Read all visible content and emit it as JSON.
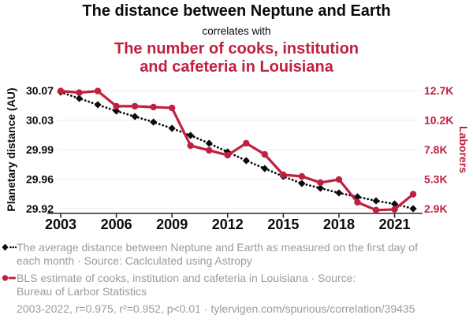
{
  "header": {
    "title": "The distance between Neptune and Earth",
    "connector": "correlates with",
    "subtitle": "The number of cooks, institution and cafeteria in Louisiana",
    "subtitle_lines": [
      "The number of cooks, institution",
      "and cafeteria in Louisiana"
    ]
  },
  "chart_data": {
    "type": "line",
    "x": [
      2003,
      2004,
      2005,
      2006,
      2007,
      2008,
      2009,
      2010,
      2011,
      2012,
      2013,
      2014,
      2015,
      2016,
      2017,
      2018,
      2019,
      2020,
      2021,
      2022
    ],
    "x_ticks": [
      "2003",
      "2006",
      "2009",
      "2012",
      "2015",
      "2018",
      "2021"
    ],
    "left_axis": {
      "label": "Planetary distance (AU)",
      "ticks": [
        "30.07",
        "30.03",
        "29.99",
        "29.96",
        "29.92"
      ],
      "range": [
        29.92,
        30.07
      ],
      "color": "#0b0b0b"
    },
    "right_axis": {
      "label": "Laborers",
      "ticks": [
        "12.7K",
        "10.2K",
        "7.8K",
        "5.3K",
        "2.9K"
      ],
      "range": [
        2900,
        12700
      ],
      "color": "#c0203e"
    },
    "grid": true,
    "legend_position": "bottom",
    "series": [
      {
        "name": "The average distance between Neptune and Earth as measured on the first day of each month",
        "axis": "left",
        "color": "#0b0b0b",
        "marker": "diamond",
        "line_style": "dotted",
        "values": [
          30.068,
          30.06,
          30.052,
          30.044,
          30.037,
          30.03,
          30.022,
          30.013,
          30.003,
          29.992,
          29.981,
          29.971,
          29.961,
          29.952,
          29.946,
          29.94,
          29.935,
          29.93,
          29.926,
          29.92
        ]
      },
      {
        "name": "BLS estimate of cooks, institution and cafeteria in Louisiana",
        "axis": "right",
        "color": "#c0203e",
        "marker": "circle",
        "line_style": "solid",
        "values": [
          12660,
          12530,
          12660,
          11400,
          11400,
          11330,
          11260,
          8130,
          7740,
          7340,
          8330,
          7400,
          5710,
          5580,
          5060,
          5320,
          3430,
          2780,
          2840,
          4100
        ]
      }
    ]
  },
  "legend": [
    {
      "marker": "black-diamond-dotted",
      "lines": [
        "The average distance between Neptune and Earth as measured on the first day of",
        "each month · Source: Caclculated using Astropy"
      ]
    },
    {
      "marker": "red-circle-solid",
      "lines": [
        "BLS estimate of cooks, institution and cafeteria in Louisiana · Source:",
        "Bureau of Larbor Statistics"
      ]
    }
  ],
  "footer": "2003-2022, r=0.975, r²=0.952, p<0.01 · tylervigen.com/spurious/correlation/39435"
}
